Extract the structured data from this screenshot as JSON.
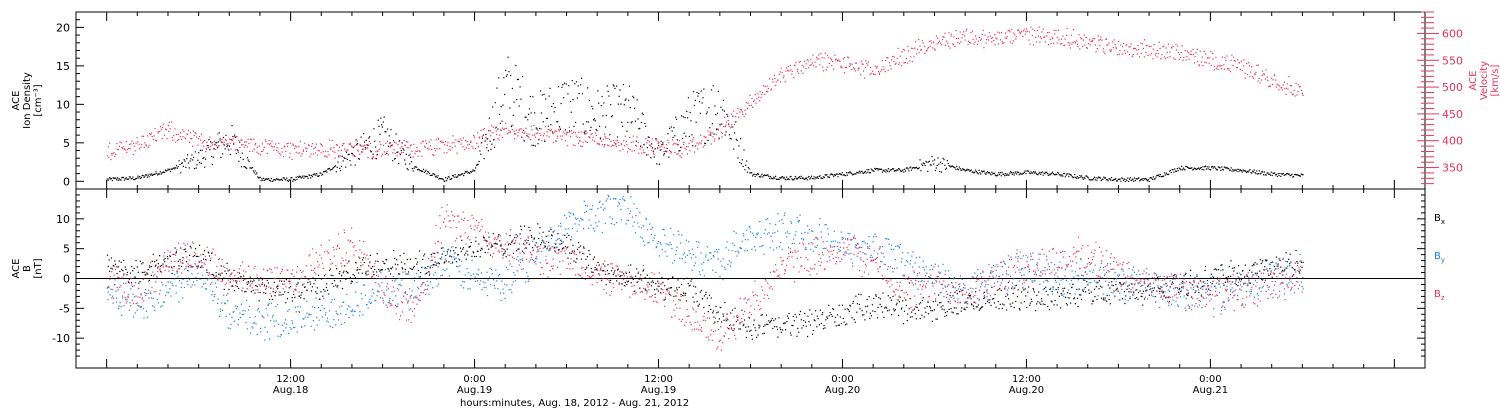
{
  "chart_data": [
    {
      "type": "scatter",
      "panel": "top",
      "left_axis_label_lines": [
        "ACE",
        "Ion Density",
        "[cm⁻³]"
      ],
      "right_axis_label_lines": [
        "ACE",
        "Velocity",
        "[km/s]"
      ],
      "ylim_left": [
        -1,
        22
      ],
      "yticks_left": [
        0,
        5,
        10,
        15,
        20
      ],
      "ylim_right": [
        310,
        640
      ],
      "yticks_right": [
        350,
        400,
        450,
        500,
        550,
        600
      ],
      "series": [
        {
          "name": "",
          "axis": "left",
          "color": "#000000",
          "x_hours": [
            0,
            2,
            4,
            6,
            8,
            10,
            12,
            14,
            16,
            18,
            20,
            22,
            24,
            26,
            28,
            30,
            32,
            34,
            36,
            38,
            40,
            42,
            44,
            46,
            48,
            50,
            52,
            54,
            56,
            58,
            60,
            62,
            64,
            66,
            68,
            70,
            72,
            74,
            76,
            78
          ],
          "values": [
            0.3,
            0.5,
            1.5,
            3.0,
            5.5,
            0.3,
            0.3,
            1.0,
            3.5,
            6.0,
            2.0,
            0.3,
            1.5,
            12.0,
            8.0,
            10.0,
            8.5,
            9.0,
            3.5,
            8.0,
            10.0,
            1.0,
            0.5,
            0.5,
            1.0,
            1.5,
            1.5,
            2.5,
            1.5,
            1.0,
            1.2,
            1.0,
            0.5,
            0.3,
            0.3,
            1.8,
            1.8,
            1.5,
            1.0,
            0.8
          ]
        },
        {
          "name": "",
          "axis": "right",
          "color": "#e8335a",
          "x_hours": [
            0,
            2,
            4,
            6,
            8,
            10,
            12,
            14,
            16,
            18,
            20,
            22,
            24,
            26,
            28,
            30,
            32,
            34,
            36,
            38,
            40,
            42,
            44,
            46,
            48,
            50,
            52,
            54,
            56,
            58,
            60,
            62,
            64,
            66,
            68,
            70,
            72,
            74,
            76,
            78
          ],
          "values": [
            380,
            395,
            420,
            400,
            395,
            390,
            385,
            385,
            385,
            385,
            385,
            390,
            400,
            420,
            415,
            410,
            405,
            395,
            390,
            385,
            420,
            470,
            525,
            550,
            545,
            530,
            560,
            585,
            595,
            590,
            600,
            595,
            585,
            575,
            570,
            565,
            550,
            540,
            515,
            495
          ]
        }
      ]
    },
    {
      "type": "scatter",
      "panel": "bottom",
      "left_axis_label_lines": [
        "ACE",
        "B",
        "[nT]"
      ],
      "ylim": [
        -15,
        15
      ],
      "yticks": [
        -10,
        -5,
        0,
        5,
        10
      ],
      "xlabel": "hours:minutes, Aug. 18, 2012 - Aug. 21, 2012",
      "series": [
        {
          "name": "Bx",
          "color": "#000000",
          "x_hours": [
            0,
            2,
            4,
            6,
            8,
            10,
            12,
            14,
            16,
            18,
            20,
            22,
            24,
            26,
            28,
            30,
            32,
            34,
            36,
            38,
            40,
            42,
            44,
            46,
            48,
            50,
            52,
            54,
            56,
            58,
            60,
            62,
            64,
            66,
            68,
            70,
            72,
            74,
            76,
            78
          ],
          "values": [
            2,
            1,
            3,
            4,
            0,
            -2,
            -2,
            -1,
            1,
            3,
            2,
            4,
            5,
            6,
            7,
            6,
            2,
            0,
            -1,
            -2,
            -6,
            -8,
            -8,
            -7,
            -6,
            -4,
            -5,
            -5,
            -4,
            -3,
            -3,
            -3,
            -2,
            -2,
            -2,
            -1,
            0,
            1,
            2,
            3
          ]
        },
        {
          "name": "By",
          "color": "#1e7fe6",
          "x_hours": [
            0,
            2,
            4,
            6,
            8,
            10,
            12,
            14,
            16,
            18,
            20,
            22,
            24,
            26,
            28,
            30,
            32,
            34,
            36,
            38,
            40,
            42,
            44,
            46,
            48,
            50,
            52,
            54,
            56,
            58,
            60,
            62,
            64,
            66,
            68,
            70,
            72,
            74,
            76,
            78
          ],
          "values": [
            -2,
            -4,
            -2,
            2,
            -6,
            -7,
            -7,
            -6,
            -4,
            -2,
            -2,
            3,
            0,
            -1,
            4,
            9,
            11,
            12,
            6,
            4,
            3,
            7,
            8,
            7,
            6,
            5,
            3,
            0,
            -2,
            1,
            2,
            0,
            1,
            -1,
            -1,
            -3,
            -2,
            -2,
            0,
            1
          ]
        },
        {
          "name": "Bz",
          "color": "#e8335a",
          "x_hours": [
            0,
            2,
            4,
            6,
            8,
            10,
            12,
            14,
            16,
            18,
            20,
            22,
            24,
            26,
            28,
            30,
            32,
            34,
            36,
            38,
            40,
            42,
            44,
            46,
            48,
            50,
            52,
            54,
            56,
            58,
            60,
            62,
            64,
            66,
            68,
            70,
            72,
            74,
            76,
            78
          ],
          "values": [
            -1,
            -2,
            3,
            4,
            0,
            0,
            0,
            3,
            6,
            -2,
            -6,
            10,
            8,
            5,
            4,
            3,
            1,
            0,
            -2,
            -6,
            -10,
            -4,
            2,
            4,
            5,
            3,
            -2,
            -1,
            -2,
            0,
            2,
            3,
            4,
            1,
            -1,
            -2,
            -3,
            -2,
            -1,
            0
          ]
        }
      ],
      "legend_labels": [
        {
          "main": "B",
          "sub": "x",
          "color": "#000000"
        },
        {
          "main": "B",
          "sub": "y",
          "color": "#1e7fe6"
        },
        {
          "main": "B",
          "sub": "z",
          "color": "#e8335a"
        }
      ]
    }
  ],
  "x_axis": {
    "start_hour": -2,
    "end_hour": 86,
    "tick_hours": [
      0,
      12,
      24,
      36,
      48,
      60,
      72,
      84
    ],
    "major_labels": [
      {
        "hour": 12,
        "time": "12:00",
        "date": "Aug.18"
      },
      {
        "hour": 24,
        "time": "0:00",
        "date": "Aug.19"
      },
      {
        "hour": 36,
        "time": "12:00",
        "date": "Aug.19"
      },
      {
        "hour": 48,
        "time": "0:00",
        "date": "Aug.20"
      },
      {
        "hour": 60,
        "time": "12:00",
        "date": "Aug.20"
      },
      {
        "hour": 72,
        "time": "0:00",
        "date": "Aug.21"
      }
    ]
  }
}
